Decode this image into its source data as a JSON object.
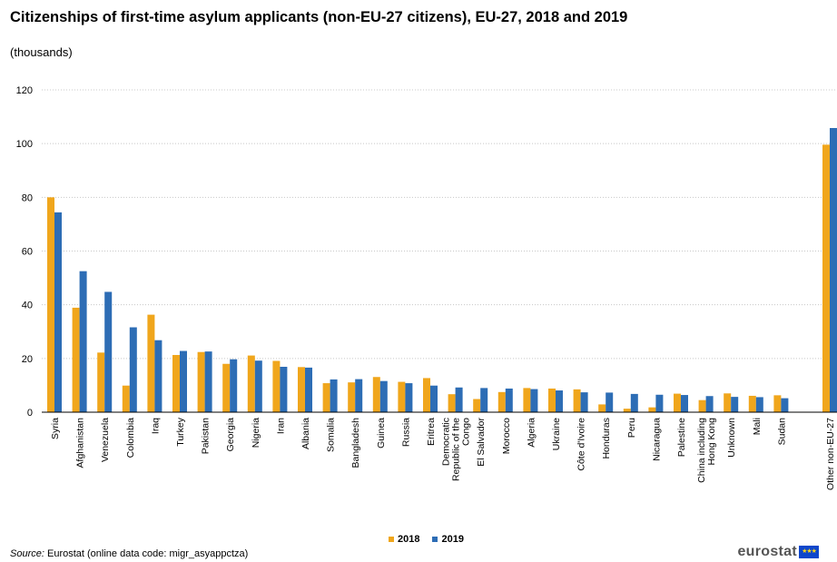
{
  "title": "Citizenships of first-time asylum applicants (non-EU-27 citizens), EU-27, 2018 and 2019",
  "subtitle": "(thousands)",
  "source_label": "Source:",
  "source_text": "Eurostat (online data code: migr_asyappctza)",
  "logo_text": "eurostat",
  "colors": {
    "2018": "#f0a61c",
    "2019": "#2d6db5",
    "grid": "#c8c8c8"
  },
  "chart_data": {
    "type": "bar",
    "title": "Citizenships of first-time asylum applicants (non-EU-27 citizens), EU-27, 2018 and 2019",
    "ylabel": "(thousands)",
    "ylim": [
      0,
      120
    ],
    "yticks": [
      0,
      20,
      40,
      60,
      80,
      100,
      120
    ],
    "grid": true,
    "legend_position": "bottom",
    "categories": [
      "Syria",
      "Afghanistan",
      "Venezuela",
      "Colombia",
      "Iraq",
      "Turkey",
      "Pakistan",
      "Georgia",
      "Nigeria",
      "Iran",
      "Albania",
      "Somalia",
      "Bangladesh",
      "Guinea",
      "Russia",
      "Eritrea",
      "Democratic Republic of the Congo",
      "El Salvador",
      "Morocco",
      "Algeria",
      "Ukraine",
      "Côte d'Ivoire",
      "Honduras",
      "Peru",
      "Nicaragua",
      "Palestine",
      "China including Hong Kong",
      "Unknown",
      "Mali",
      "Sudan",
      "Other non-EU-27"
    ],
    "series": [
      {
        "name": "2018",
        "values": [
          80.0,
          38.9,
          22.2,
          9.9,
          36.3,
          21.3,
          22.4,
          18.0,
          21.1,
          19.1,
          16.8,
          10.8,
          11.1,
          13.1,
          11.3,
          12.7,
          6.7,
          4.9,
          7.5,
          9.0,
          8.8,
          8.5,
          2.9,
          1.3,
          1.8,
          6.9,
          4.5,
          7.0,
          6.1,
          6.3,
          99.6
        ]
      },
      {
        "name": "2019",
        "values": [
          74.4,
          52.5,
          44.8,
          31.6,
          26.8,
          22.8,
          22.6,
          19.7,
          19.2,
          16.9,
          16.6,
          12.2,
          12.3,
          11.6,
          10.8,
          9.9,
          9.2,
          9.0,
          8.8,
          8.6,
          8.1,
          7.4,
          7.3,
          6.8,
          6.5,
          6.4,
          6.0,
          5.7,
          5.6,
          5.2,
          105.8
        ]
      }
    ]
  }
}
